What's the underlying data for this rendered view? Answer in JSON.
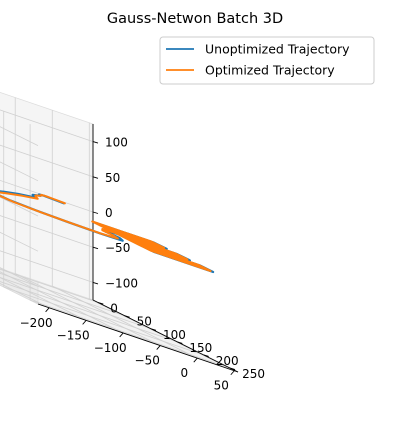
{
  "chart_data": {
    "type": "line",
    "projection": "3d",
    "title": "Gauss-Netwon Batch 3D",
    "xlabel": "",
    "ylabel": "",
    "zlabel": "",
    "xlim": [
      -215,
      55
    ],
    "ylim": [
      -10,
      265
    ],
    "zlim": [
      -125,
      125
    ],
    "x_ticks": [
      -200,
      -150,
      -100,
      -50,
      0,
      50
    ],
    "y_ticks": [
      0,
      50,
      100,
      150,
      200,
      250
    ],
    "z_ticks": [
      -100,
      -50,
      0,
      50,
      100
    ],
    "x_tick_labels": [
      "−200",
      "−150",
      "−100",
      "−50",
      "0",
      "50"
    ],
    "y_tick_labels": [
      "0",
      "50",
      "100",
      "150",
      "200",
      "250"
    ],
    "z_tick_labels": [
      "−100",
      "−50",
      "0",
      "50",
      "100"
    ],
    "grid": true,
    "legend": "top-right",
    "series": [
      {
        "name": "Unoptimized Trajectory",
        "color": "#1f77b4",
        "points": [
          [
            5,
            5,
            0
          ],
          [
            -5,
            0,
            0
          ],
          [
            -15,
            -5,
            0
          ],
          [
            -25,
            0,
            0
          ],
          [
            -30,
            10,
            0
          ],
          [
            -55,
            30,
            0
          ],
          [
            -60,
            40,
            0
          ],
          [
            -70,
            55,
            0
          ],
          [
            -110,
            80,
            0
          ],
          [
            -150,
            110,
            0
          ],
          [
            -185,
            140,
            0
          ],
          [
            -205,
            170,
            0
          ],
          [
            -200,
            190,
            0
          ],
          [
            -175,
            205,
            0
          ],
          [
            -140,
            215,
            0
          ],
          [
            -100,
            220,
            0
          ],
          [
            -65,
            215,
            0
          ],
          [
            -55,
            195,
            0
          ],
          [
            -60,
            175,
            0
          ],
          [
            -50,
            160,
            0
          ],
          [
            -30,
            155,
            0
          ],
          [
            -15,
            160,
            0
          ]
        ],
        "survey": {
          "x_center": 12,
          "y_center": 165,
          "z": 0,
          "x_half_width": 40,
          "y_half_width": 55,
          "passes": 6,
          "repeats": 2
        }
      },
      {
        "name": "Optimized Trajectory",
        "color": "#ff7f0e",
        "points": [
          [
            10,
            0,
            0
          ],
          [
            0,
            -5,
            0
          ],
          [
            -10,
            -8,
            0
          ],
          [
            -20,
            -3,
            0
          ],
          [
            -28,
            8,
            0
          ],
          [
            -50,
            28,
            0
          ],
          [
            -58,
            40,
            0
          ],
          [
            -68,
            58,
            0
          ],
          [
            -108,
            85,
            0
          ],
          [
            -148,
            115,
            0
          ],
          [
            -185,
            145,
            0
          ],
          [
            -205,
            175,
            0
          ],
          [
            -198,
            195,
            0
          ],
          [
            -170,
            208,
            0
          ],
          [
            -135,
            215,
            0
          ],
          [
            -98,
            218,
            0
          ],
          [
            -68,
            210,
            0
          ],
          [
            -60,
            190,
            0
          ],
          [
            -62,
            172,
            0
          ],
          [
            -52,
            158,
            0
          ],
          [
            -32,
            152,
            0
          ],
          [
            -15,
            157,
            0
          ]
        ],
        "survey": {
          "x_center": 10,
          "y_center": 163,
          "z": 0,
          "x_half_width": 40,
          "y_half_width": 55,
          "passes": 6,
          "repeats": 2
        }
      }
    ]
  }
}
